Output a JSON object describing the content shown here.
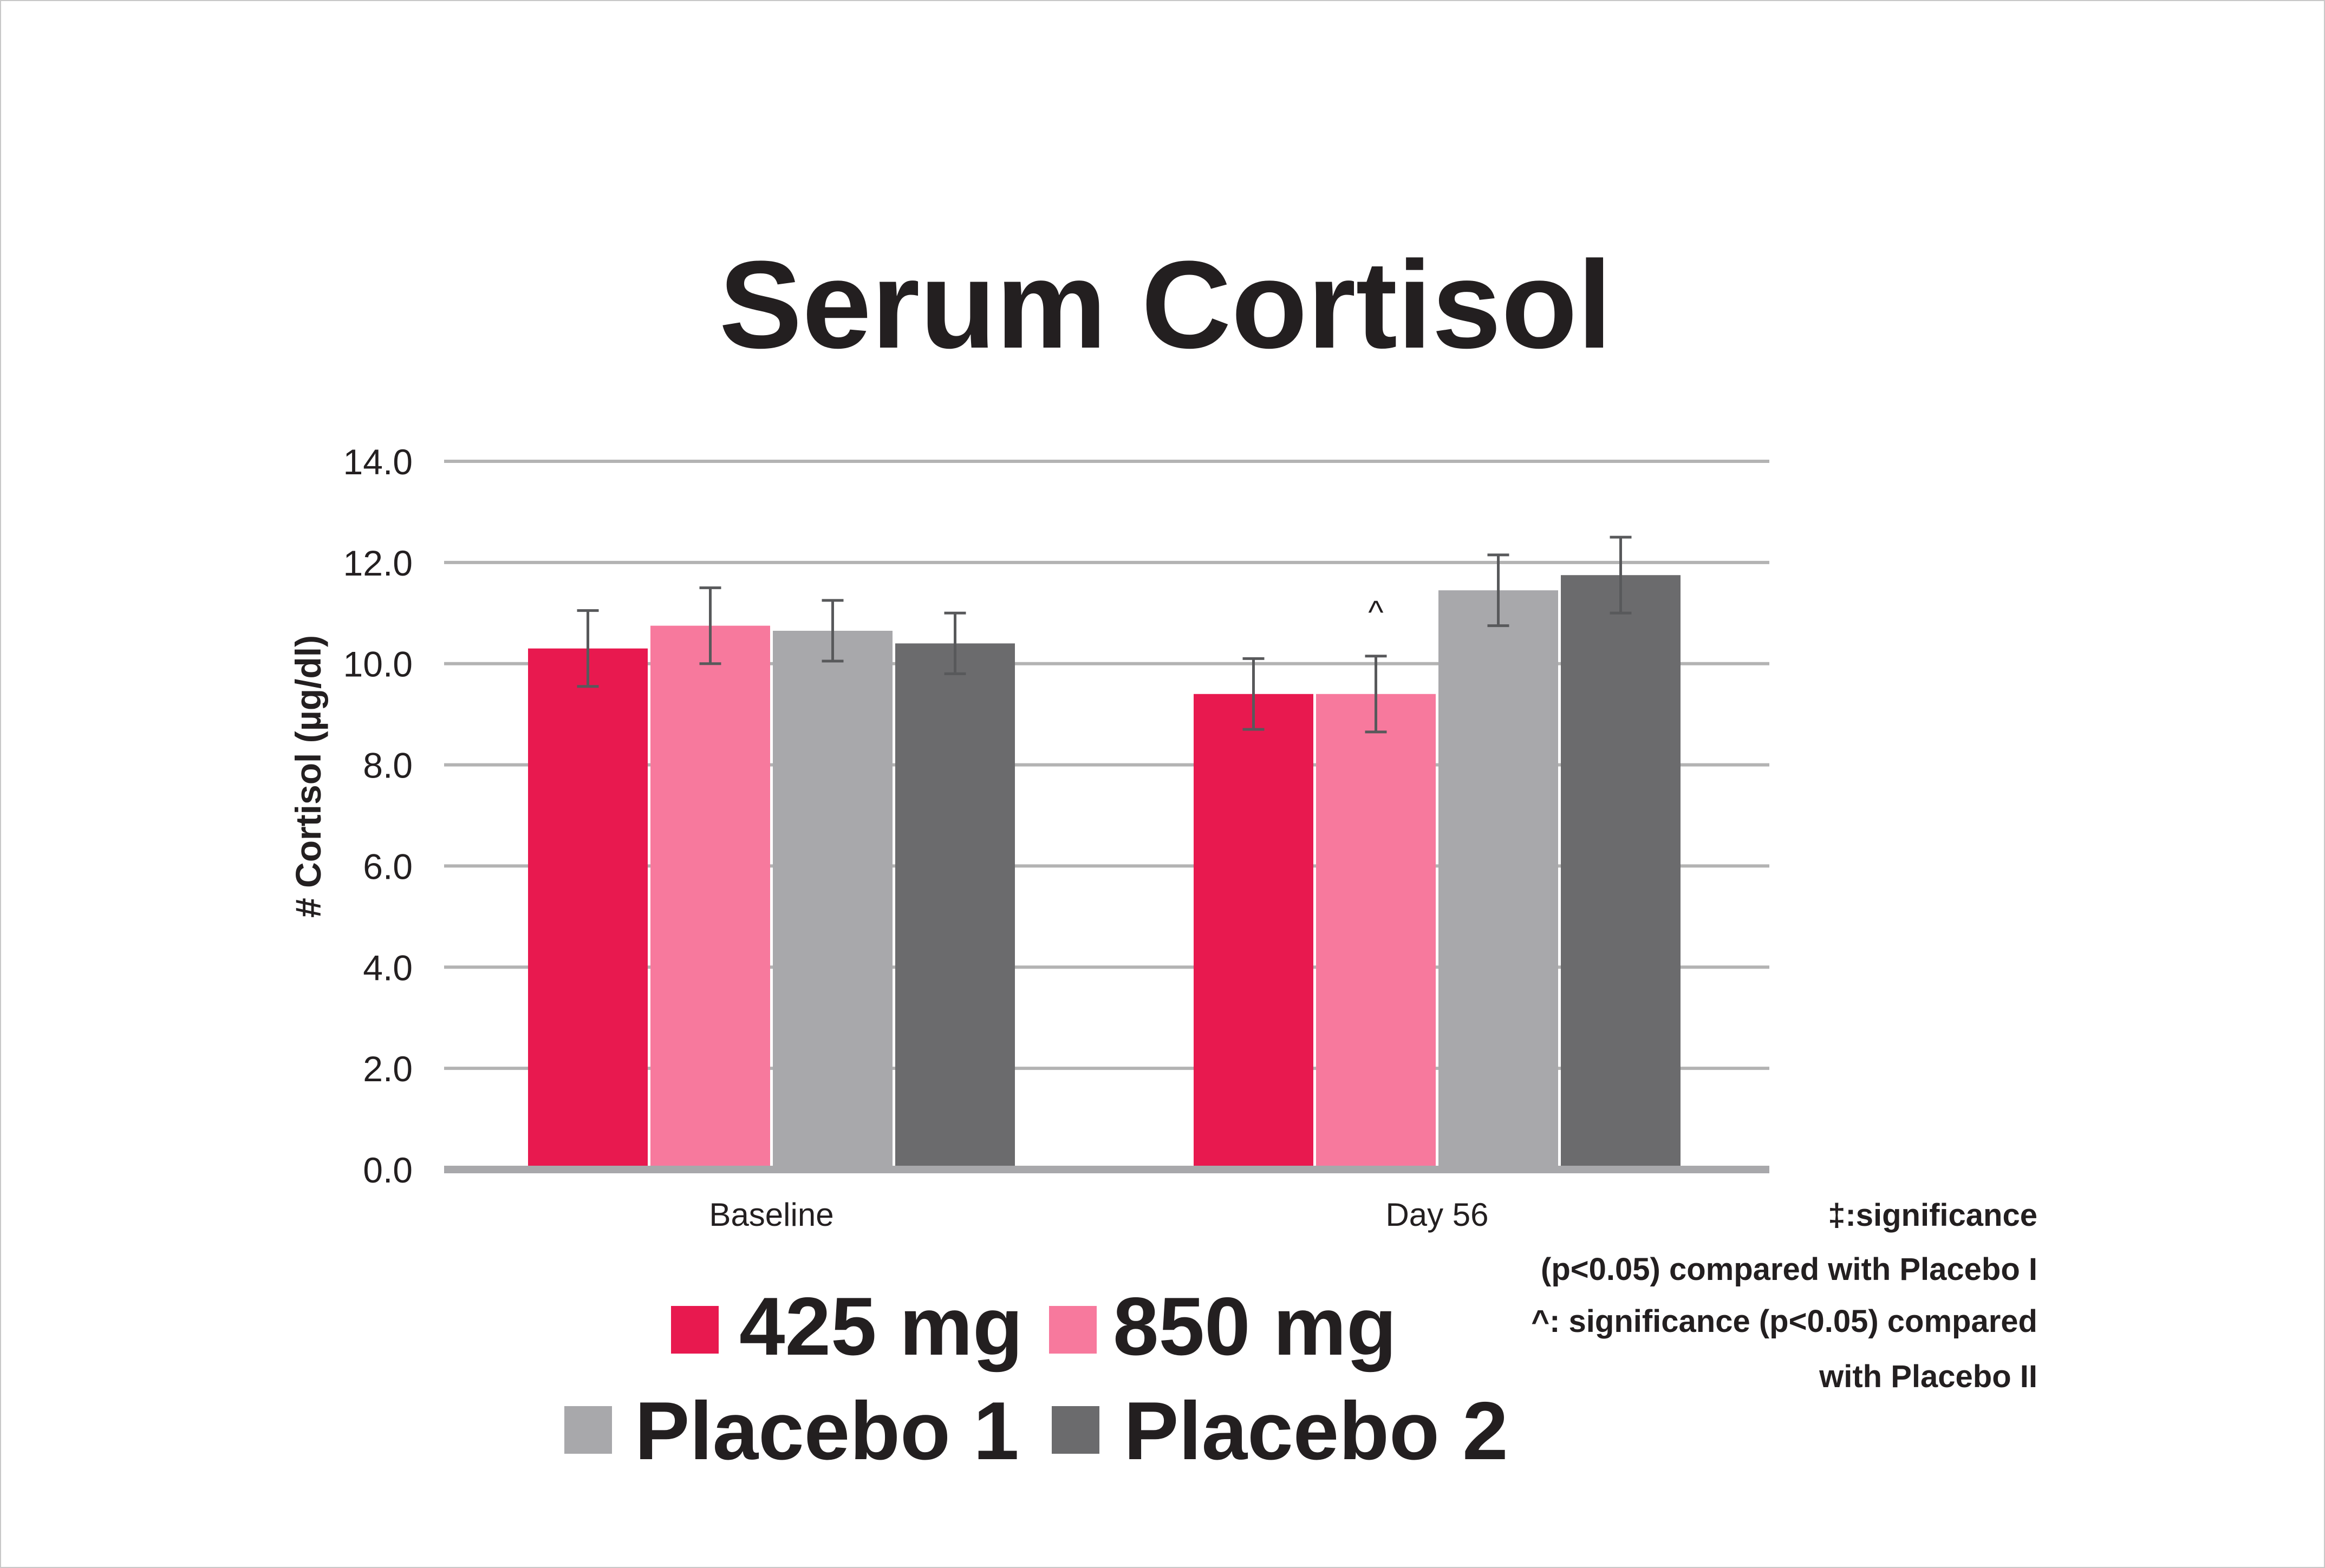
{
  "chart_data": {
    "type": "bar",
    "title": "Serum Cortisol",
    "ylabel": "# Cortisol (µg/dl)",
    "xlabel": "",
    "ylim": [
      0,
      14
    ],
    "yticks": [
      "0.0",
      "2.0",
      "4.0",
      "6.0",
      "8.0",
      "10.0",
      "12.0",
      "14.0"
    ],
    "categories": [
      "Baseline",
      "Day 56"
    ],
    "series": [
      {
        "name": "425 mg",
        "color": "#e8194f",
        "values": [
          10.3,
          9.4
        ],
        "errors": [
          0.75,
          0.7
        ]
      },
      {
        "name": "850 mg",
        "color": "#f7799d",
        "values": [
          10.75,
          9.4
        ],
        "errors": [
          0.75,
          0.75
        ]
      },
      {
        "name": "Placebo 1",
        "color": "#a8a8ab",
        "values": [
          10.65,
          11.45
        ],
        "errors": [
          0.6,
          0.7
        ]
      },
      {
        "name": "Placebo 2",
        "color": "#6b6b6d",
        "values": [
          10.4,
          11.75
        ],
        "errors": [
          0.6,
          0.75
        ]
      }
    ],
    "annotations": [
      {
        "text": "^",
        "category": "Day 56",
        "series": "850 mg"
      }
    ],
    "grid": true,
    "legend_position": "bottom"
  },
  "notes": [
    "‡:significance",
    "(p<0.05) compared with Placebo I",
    "^: significance (p<0.05) compared",
    "with Placebo II"
  ]
}
